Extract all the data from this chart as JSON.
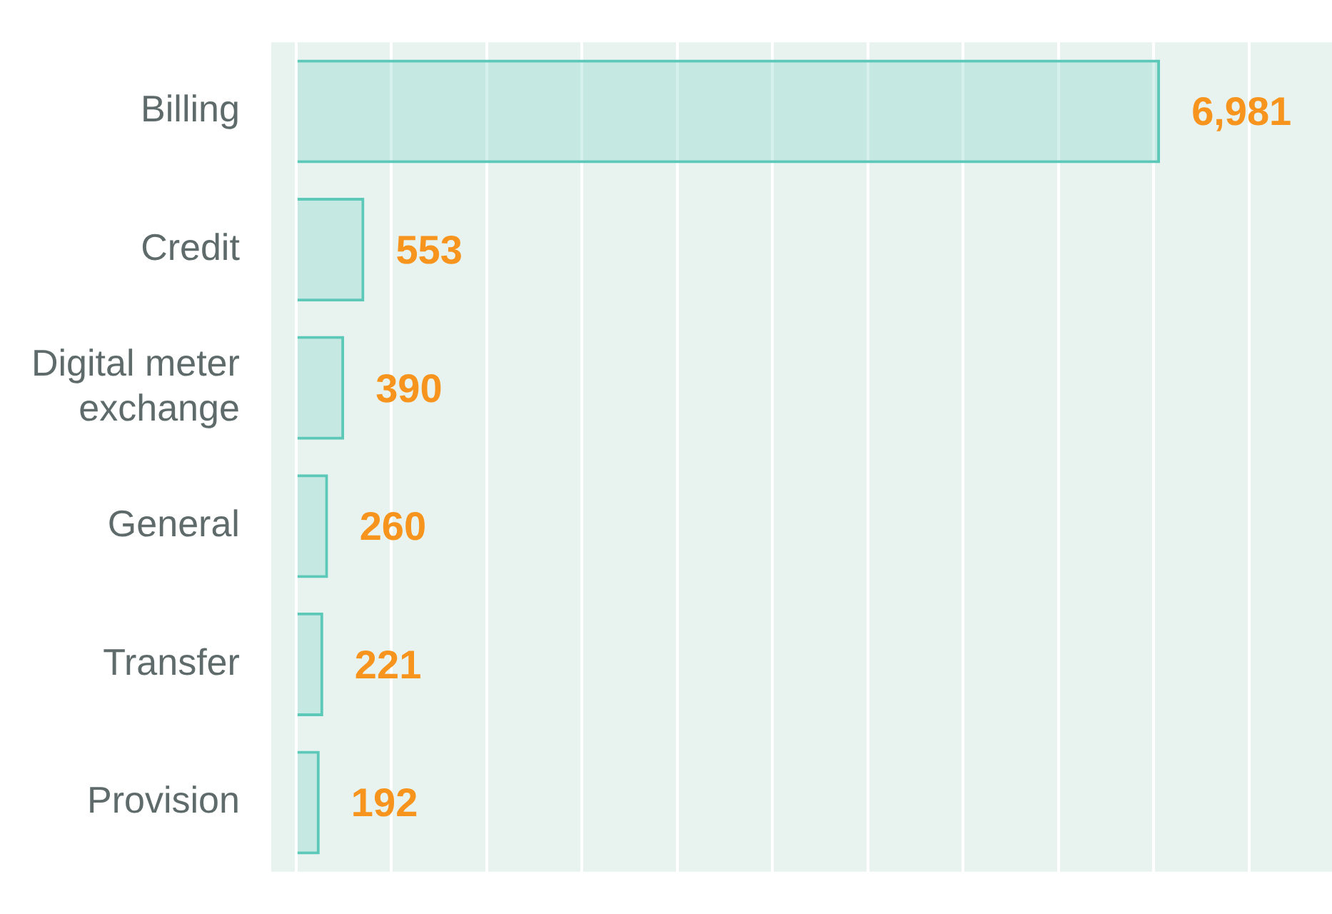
{
  "chart_data": {
    "type": "bar",
    "orientation": "horizontal",
    "categories": [
      "Billing",
      "Credit",
      "Digital meter exchange",
      "General",
      "Transfer",
      "Provision"
    ],
    "values": [
      6981,
      553,
      390,
      260,
      221,
      192
    ],
    "value_labels": [
      "6,981",
      "553",
      "390",
      "260",
      "221",
      "192"
    ],
    "color": "#5bc8b8",
    "grid": "x",
    "tick_labels": "y",
    "xlim": [
      -200,
      8370
    ],
    "xticks": [
      {
        "value": 0,
        "label": null
      },
      {
        "value": 770,
        "label": null
      },
      {
        "value": 1540,
        "label": null
      },
      {
        "value": 2310,
        "label": null
      },
      {
        "value": 3080,
        "label": null
      },
      {
        "value": 3850,
        "label": null
      },
      {
        "value": 4620,
        "label": null
      },
      {
        "value": 5390,
        "label": null
      },
      {
        "value": 6160,
        "label": null
      },
      {
        "value": 6930,
        "label": null
      },
      {
        "value": 7700,
        "label": null
      }
    ]
  }
}
